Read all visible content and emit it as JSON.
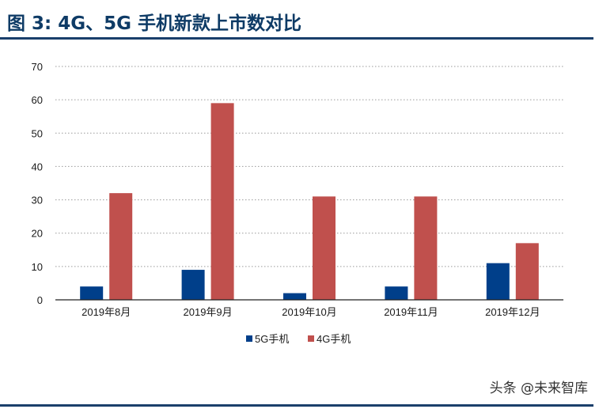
{
  "header": {
    "title": "图 3: 4G、5G 手机新款上市数对比"
  },
  "watermark": "头条 @未来智库",
  "chart_data": {
    "type": "bar",
    "categories": [
      "2019年8月",
      "2019年9月",
      "2019年10月",
      "2019年11月",
      "2019年12月"
    ],
    "series": [
      {
        "name": "5G手机",
        "values": [
          4,
          9,
          2,
          4,
          11
        ],
        "color": "#003f8a"
      },
      {
        "name": "4G手机",
        "values": [
          32,
          59,
          31,
          31,
          17
        ],
        "color": "#c0504d"
      }
    ],
    "ylim": [
      0,
      70
    ],
    "yticks": [
      0,
      10,
      20,
      30,
      40,
      50,
      60,
      70
    ],
    "grid": true,
    "legend": "bottom"
  }
}
